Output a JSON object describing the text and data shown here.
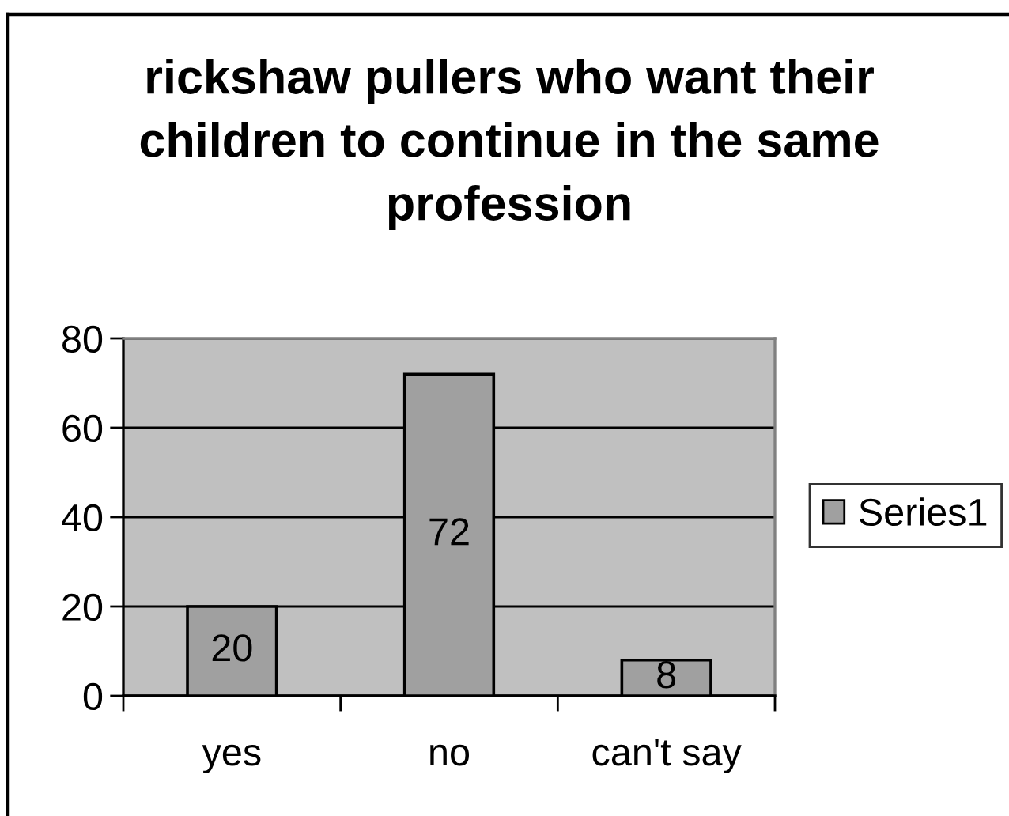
{
  "chart_data": {
    "type": "bar",
    "title": "rickshaw pullers who want their children to continue in the same profession",
    "categories": [
      "yes",
      "no",
      "can't say"
    ],
    "series": [
      {
        "name": "Series1",
        "color": "#a0a0a0",
        "values": [
          20,
          72,
          8
        ]
      }
    ],
    "ylim": [
      0,
      80
    ],
    "yticks": [
      0,
      20,
      40,
      60,
      80
    ],
    "grid": "y",
    "legend": "right",
    "data_labels": true
  }
}
